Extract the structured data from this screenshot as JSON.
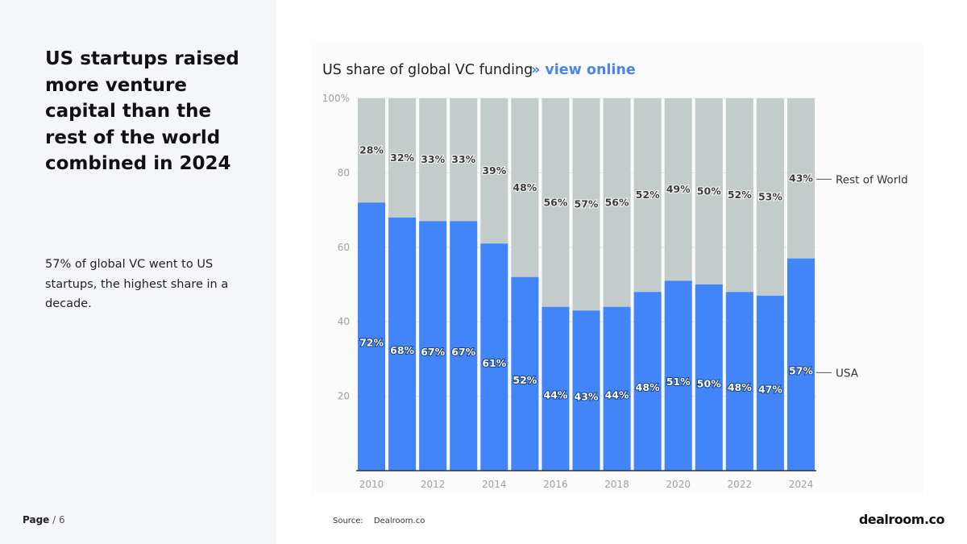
{
  "headline": "US startups raised more venture capital than the rest of the world combined in 2024",
  "subtext": "57% of global VC went to US startups, the highest share in a decade.",
  "chart_header": {
    "title": "US share of global VC funding",
    "link": "» view online"
  },
  "footer": {
    "page_label": "Page",
    "page_sep": "/ 6",
    "source_label": "Source:",
    "source_value": "Dealroom.co",
    "brand": "dealroom.co"
  },
  "colors": {
    "usa": "#4285f8",
    "rest_of_world": "#c3cccb",
    "link": "#4a86e8"
  },
  "chart_data": {
    "type": "bar",
    "stacked": true,
    "title": "US share of global VC funding",
    "categories": [
      "2010",
      "2011",
      "2012",
      "2013",
      "2014",
      "2015",
      "2016",
      "2017",
      "2018",
      "2019",
      "2020",
      "2021",
      "2022",
      "2023",
      "2024"
    ],
    "series": [
      {
        "name": "USA",
        "color": "#4285f8",
        "values": [
          72,
          68,
          67,
          67,
          61,
          52,
          44,
          43,
          44,
          48,
          51,
          50,
          48,
          47,
          57
        ]
      },
      {
        "name": "Rest of World",
        "color": "#c3cccb",
        "values": [
          28,
          32,
          33,
          33,
          39,
          48,
          56,
          57,
          56,
          52,
          49,
          50,
          52,
          53,
          43
        ]
      }
    ],
    "bar_value_labels": {
      "USA": [
        "72%",
        "68%",
        "67%",
        "67%",
        "61%",
        "52%",
        "44%",
        "43%",
        "44%",
        "48%",
        "51%",
        "50%",
        "48%",
        "47%",
        "57%"
      ],
      "Rest of World": [
        "28%",
        "32%",
        "33%",
        "33%",
        "39%",
        "48%",
        "56%",
        "57%",
        "56%",
        "52%",
        "49%",
        "50%",
        "52%",
        "53%",
        "43%"
      ]
    },
    "ylim": [
      0,
      100
    ],
    "y_ticks": [
      20,
      40,
      60,
      80,
      100
    ],
    "y_tick_labels": [
      "20",
      "40",
      "60",
      "80",
      "100%"
    ],
    "x_tick_labels": [
      "2010",
      "2012",
      "2014",
      "2016",
      "2018",
      "2020",
      "2022",
      "2024"
    ],
    "legend": "end-of-series labels, right",
    "grid": true,
    "xlabel": "",
    "ylabel": ""
  }
}
